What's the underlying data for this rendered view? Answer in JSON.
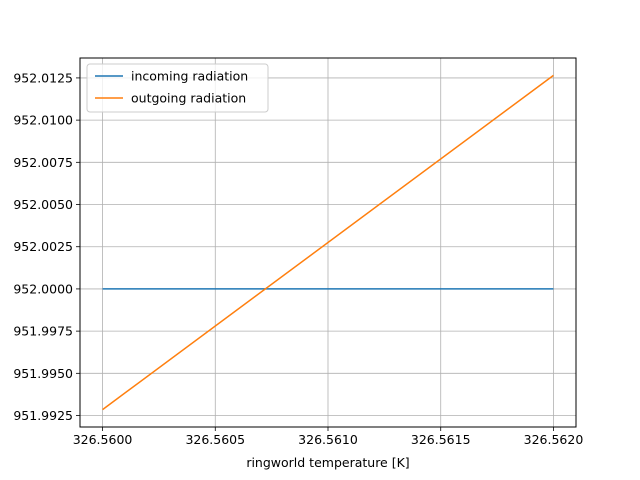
{
  "chart_data": {
    "type": "line",
    "title": "",
    "xlabel": "ringworld temperature [K]",
    "ylabel": "",
    "xlim": [
      326.5599,
      326.5621
    ],
    "ylim": [
      951.99182,
      952.01368
    ],
    "x_ticks": [
      326.56,
      326.5605,
      326.561,
      326.5615,
      326.562
    ],
    "x_tick_labels": [
      "326.5600",
      "326.5605",
      "326.5610",
      "326.5615",
      "326.5620"
    ],
    "y_ticks": [
      951.9925,
      951.995,
      951.9975,
      952.0,
      952.0025,
      952.005,
      952.0075,
      952.01,
      952.0125
    ],
    "y_tick_labels": [
      "951.9925",
      "951.9950",
      "951.9975",
      "952.0000",
      "952.0025",
      "952.0050",
      "952.0075",
      "952.0100",
      "952.0125"
    ],
    "grid": true,
    "legend_position": "top-left",
    "series": [
      {
        "name": "incoming radiation",
        "color": "#1f77b4",
        "x": [
          326.56,
          326.562
        ],
        "y": [
          952.0,
          952.0
        ]
      },
      {
        "name": "outgoing radiation",
        "color": "#ff7f0e",
        "x": [
          326.56,
          326.562
        ],
        "y": [
          951.99285,
          952.01265
        ]
      }
    ]
  }
}
